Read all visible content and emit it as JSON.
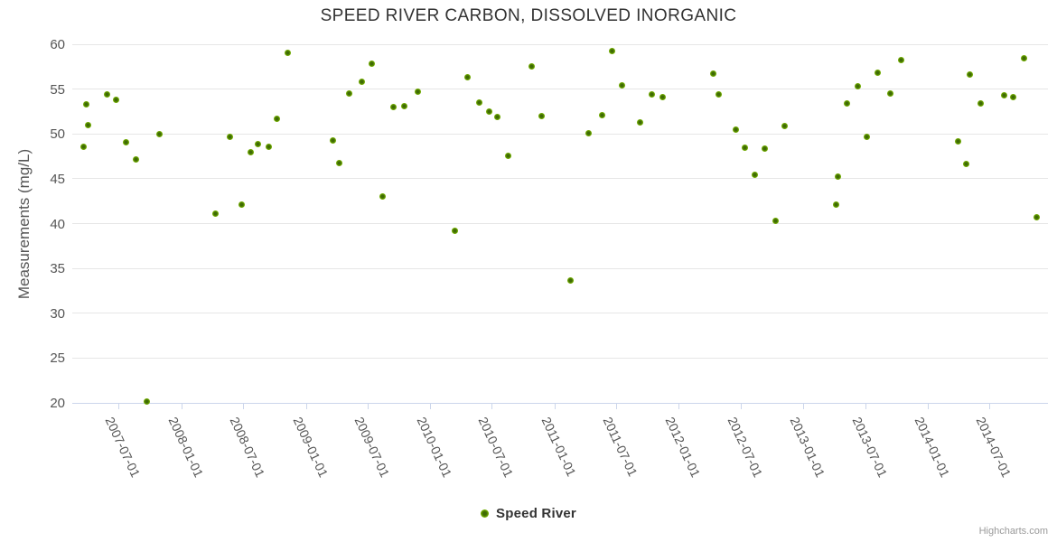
{
  "title": "SPEED RIVER CARBON, DISSOLVED INORGANIC",
  "credits_label": "Highcharts.com",
  "colors": {
    "accent": "#77b300",
    "marker_edge": "#7cb607",
    "marker_core": "#3e6a04",
    "title_text": "#333333",
    "axis_text": "#555555",
    "grid": "#e6e6e6",
    "axis_line": "#ccd6eb",
    "legend_text": "#333333",
    "credits_text": "#999999",
    "background": "#ffffff"
  },
  "chart_data": {
    "type": "scatter",
    "title": "SPEED RIVER CARBON, DISSOLVED INORGANIC",
    "xlabel": "",
    "ylabel": "Measurements (mg/L)",
    "ylim": [
      20,
      60
    ],
    "yticks": [
      20,
      25,
      30,
      35,
      40,
      45,
      50,
      55,
      60
    ],
    "xlim": [
      "2007-02-15",
      "2014-12-20"
    ],
    "xticks": [
      "2007-07-01",
      "2008-01-01",
      "2008-07-01",
      "2009-01-01",
      "2009-07-01",
      "2010-01-01",
      "2010-07-01",
      "2011-01-01",
      "2011-07-01",
      "2012-01-01",
      "2012-07-01",
      "2013-01-01",
      "2013-07-01",
      "2014-01-01",
      "2014-07-01"
    ],
    "grid": "horizontal",
    "legend_position": "bottom-center",
    "series": [
      {
        "name": "Speed River",
        "points": [
          [
            "2007-03-20",
            48.6
          ],
          [
            "2007-03-29",
            53.3
          ],
          [
            "2007-04-02",
            51.0
          ],
          [
            "2007-05-27",
            54.4
          ],
          [
            "2007-06-24",
            53.8
          ],
          [
            "2007-07-23",
            49.1
          ],
          [
            "2007-08-20",
            47.2
          ],
          [
            "2007-09-21",
            20.2
          ],
          [
            "2007-10-28",
            50.0
          ],
          [
            "2008-04-10",
            41.1
          ],
          [
            "2008-05-24",
            49.7
          ],
          [
            "2008-06-27",
            42.1
          ],
          [
            "2008-07-23",
            48.0
          ],
          [
            "2008-08-14",
            48.9
          ],
          [
            "2008-09-15",
            48.6
          ],
          [
            "2008-10-09",
            51.7
          ],
          [
            "2008-11-08",
            59.0
          ],
          [
            "2009-03-21",
            49.3
          ],
          [
            "2009-04-08",
            46.8
          ],
          [
            "2009-05-09",
            54.5
          ],
          [
            "2009-06-15",
            55.8
          ],
          [
            "2009-07-13",
            57.8
          ],
          [
            "2009-08-13",
            43.0
          ],
          [
            "2009-09-15",
            53.0
          ],
          [
            "2009-10-18",
            53.1
          ],
          [
            "2009-11-25",
            54.7
          ],
          [
            "2010-03-14",
            39.2
          ],
          [
            "2010-04-20",
            56.3
          ],
          [
            "2010-05-25",
            53.5
          ],
          [
            "2010-06-22",
            52.5
          ],
          [
            "2010-07-18",
            51.9
          ],
          [
            "2010-08-17",
            47.6
          ],
          [
            "2010-10-25",
            57.5
          ],
          [
            "2010-11-23",
            52.0
          ],
          [
            "2011-02-18",
            33.7
          ],
          [
            "2011-04-10",
            50.1
          ],
          [
            "2011-05-20",
            52.1
          ],
          [
            "2011-06-19",
            59.2
          ],
          [
            "2011-07-17",
            55.4
          ],
          [
            "2011-09-10",
            51.3
          ],
          [
            "2011-10-14",
            54.4
          ],
          [
            "2011-11-14",
            54.1
          ],
          [
            "2012-04-12",
            56.7
          ],
          [
            "2012-04-28",
            54.4
          ],
          [
            "2012-06-16",
            50.5
          ],
          [
            "2012-07-12",
            48.5
          ],
          [
            "2012-08-11",
            45.4
          ],
          [
            "2012-09-10",
            48.4
          ],
          [
            "2012-10-10",
            40.3
          ],
          [
            "2012-11-08",
            50.9
          ],
          [
            "2013-04-06",
            42.1
          ],
          [
            "2013-04-12",
            45.2
          ],
          [
            "2013-05-10",
            53.4
          ],
          [
            "2013-06-10",
            55.3
          ],
          [
            "2013-07-07",
            49.7
          ],
          [
            "2013-08-08",
            56.8
          ],
          [
            "2013-09-13",
            54.5
          ],
          [
            "2013-10-15",
            58.2
          ],
          [
            "2014-04-01",
            49.2
          ],
          [
            "2014-04-24",
            46.7
          ],
          [
            "2014-05-04",
            56.6
          ],
          [
            "2014-06-05",
            53.4
          ],
          [
            "2014-08-14",
            54.3
          ],
          [
            "2014-09-09",
            54.1
          ],
          [
            "2014-10-10",
            58.4
          ],
          [
            "2014-11-16",
            40.7
          ]
        ]
      }
    ]
  },
  "legend": {
    "label": "Speed River"
  }
}
